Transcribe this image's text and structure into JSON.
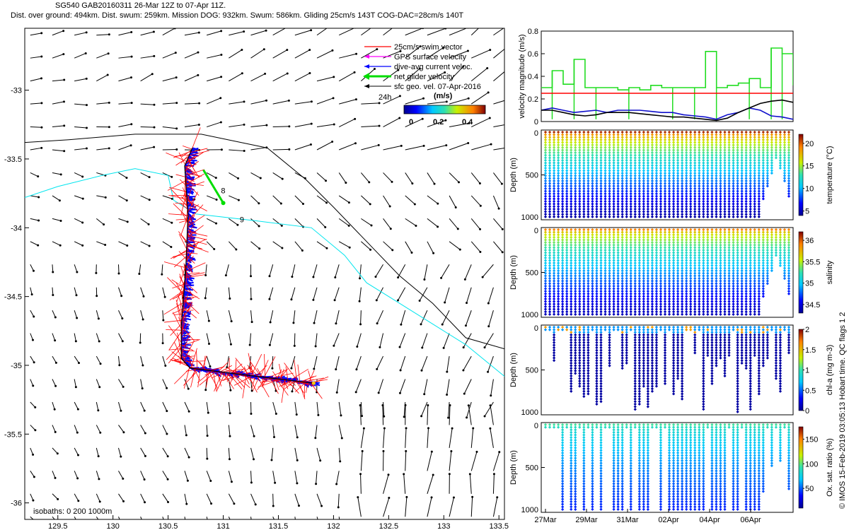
{
  "header": {
    "line1": "SG540 GAB20160311 26-Mar 12Z to 07-Apr 11Z.",
    "line2": "Dist. over ground: 494km. Dist. swum: 259km. Mission DOG: 932km. Swum: 586km. Gliding 25cm/s 143T COG-DAC=28cm/s 140T"
  },
  "footer": {
    "credit": "© IMOS 15-Feb-2019 03:05:13 Hobart time. QC flags 1  2"
  },
  "colors": {
    "swim": "#ff0000",
    "gps": "#ff00ff",
    "dac": "#0000ff",
    "net": "#00dd00",
    "geo": "#000000",
    "cyan_isobath": "#00e5ee",
    "black_isobath": "#000000",
    "threshold": "#ff0000"
  },
  "chart_data": [
    {
      "type": "scatter",
      "panel": "map",
      "x_ticks": [
        "129.5",
        "130",
        "130.5",
        "131",
        "131.5",
        "132",
        "132.5",
        "133",
        "133.5"
      ],
      "y_ticks": [
        "-33",
        "-33.5",
        "-34",
        "-34.5",
        "-35",
        "-35.5",
        "-36"
      ],
      "xlim": [
        129.2,
        133.55
      ],
      "ylim": [
        -36.12,
        -32.55
      ],
      "legend": [
        {
          "label": "25cm/s swim vector",
          "color": "#ff0000"
        },
        {
          "label": "GPS surface velocity",
          "color": "#ff00ff"
        },
        {
          "label": "dive-avg current veloc.",
          "color": "#0000ff"
        },
        {
          "label": "net glider velocity",
          "color": "#00dd00"
        },
        {
          "label": "sfc geo. vel. 07-Apr-2016",
          "color": "#000000"
        }
      ],
      "legend_placement": "top-right",
      "time_marker": "24h",
      "colorbar": {
        "label": "(m/s)",
        "ticks": [
          "0",
          "0.2",
          "0.4"
        ],
        "range": [
          0,
          0.5
        ]
      },
      "annotations": [
        {
          "text": "8",
          "lon": 130.98,
          "lat": -33.75
        },
        {
          "text": "9",
          "lon": 131.15,
          "lat": -33.96
        },
        {
          "text": "isobaths: 0   200   1000m"
        }
      ],
      "glider_track": [
        {
          "lon": 130.72,
          "lat": -33.42
        },
        {
          "lon": 130.65,
          "lat": -33.55
        },
        {
          "lon": 130.68,
          "lat": -33.9
        },
        {
          "lon": 130.66,
          "lat": -34.3
        },
        {
          "lon": 130.62,
          "lat": -34.7
        },
        {
          "lon": 130.62,
          "lat": -34.95
        },
        {
          "lon": 130.7,
          "lat": -35.02
        },
        {
          "lon": 131.2,
          "lat": -35.07
        },
        {
          "lon": 131.82,
          "lat": -35.13
        }
      ],
      "isobath_200m": [
        {
          "lon": 129.2,
          "lat": -33.78
        },
        {
          "lon": 129.5,
          "lat": -33.7
        },
        {
          "lon": 129.9,
          "lat": -33.62
        },
        {
          "lon": 130.2,
          "lat": -33.57
        },
        {
          "lon": 130.5,
          "lat": -33.62
        },
        {
          "lon": 130.55,
          "lat": -33.8
        },
        {
          "lon": 130.75,
          "lat": -33.9
        },
        {
          "lon": 131.3,
          "lat": -33.95
        },
        {
          "lon": 131.8,
          "lat": -34.0
        },
        {
          "lon": 132.1,
          "lat": -34.2
        },
        {
          "lon": 132.3,
          "lat": -34.4
        },
        {
          "lon": 132.5,
          "lat": -34.5
        },
        {
          "lon": 132.9,
          "lat": -34.7
        },
        {
          "lon": 133.2,
          "lat": -34.85
        },
        {
          "lon": 133.55,
          "lat": -35.08
        }
      ],
      "isobath_1000m": [
        {
          "lon": 129.2,
          "lat": -33.38
        },
        {
          "lon": 129.6,
          "lat": -33.36
        },
        {
          "lon": 130.2,
          "lat": -33.32
        },
        {
          "lon": 130.8,
          "lat": -33.32
        },
        {
          "lon": 131.4,
          "lat": -33.42
        },
        {
          "lon": 131.75,
          "lat": -33.65
        },
        {
          "lon": 132.0,
          "lat": -33.85
        },
        {
          "lon": 132.3,
          "lat": -34.1
        },
        {
          "lon": 132.6,
          "lat": -34.35
        },
        {
          "lon": 132.9,
          "lat": -34.55
        },
        {
          "lon": 133.2,
          "lat": -34.8
        },
        {
          "lon": 133.55,
          "lat": -34.88
        }
      ]
    },
    {
      "type": "line",
      "panel": "velocity",
      "ylabel": "velocity magnitude (m/s)",
      "y_ticks": [
        "0",
        "0.2",
        "0.4",
        "0.6",
        "0.8"
      ],
      "ylim": [
        0,
        0.8
      ],
      "x": [
        0,
        0.5,
        1,
        1.5,
        2,
        2.5,
        3,
        3.5,
        4,
        4.5,
        5,
        5.5,
        6,
        6.5,
        7,
        7.5,
        8,
        8.5,
        9,
        9.5,
        10,
        10.5,
        11,
        11.5
      ],
      "series": [
        {
          "color": "#22dd22",
          "values": [
            0.3,
            0.45,
            0.33,
            0.55,
            0.3,
            0.3,
            0.3,
            0.28,
            0.3,
            0.28,
            0.32,
            0.3,
            0.3,
            0.3,
            0.3,
            0.62,
            0.3,
            0.32,
            0.34,
            0.38,
            0.3,
            0.65,
            0.6,
            0.32
          ]
        },
        {
          "color": "#1010cc",
          "values": [
            0.1,
            0.12,
            0.1,
            0.08,
            0.09,
            0.1,
            0.08,
            0.1,
            0.1,
            0.1,
            0.09,
            0.08,
            0.08,
            0.06,
            0.05,
            0.04,
            0.02,
            0.06,
            0.08,
            0.12,
            0.1,
            0.05,
            0.04,
            0.02
          ]
        },
        {
          "color": "#000000",
          "values": [
            0.1,
            0.1,
            0.08,
            0.06,
            0.05,
            0.06,
            0.08,
            0.08,
            0.08,
            0.07,
            0.06,
            0.05,
            0.04,
            0.04,
            0.03,
            0.02,
            0.01,
            0.03,
            0.08,
            0.12,
            0.16,
            0.18,
            0.19,
            0.17
          ]
        }
      ],
      "threshold": 0.25
    },
    {
      "type": "heatmap",
      "panel": "temperature",
      "ylabel": "Depth (m)",
      "y_ticks": [
        "0",
        "500",
        "1000"
      ],
      "colorbar_label": "temperature (°C)",
      "colorbar_ticks": [
        "5",
        "10",
        "15",
        "20"
      ],
      "surface_value": 21,
      "deep_value": 4.5,
      "range": [
        4,
        22
      ]
    },
    {
      "type": "heatmap",
      "panel": "salinity",
      "ylabel": "Depth (m)",
      "y_ticks": [
        "0",
        "500",
        "1000"
      ],
      "colorbar_label": "salinity",
      "colorbar_ticks": [
        "34.5",
        "35",
        "35.5",
        "36"
      ],
      "surface_value": 35.9,
      "deep_value": 34.4,
      "range": [
        34.3,
        36.2
      ]
    },
    {
      "type": "heatmap",
      "panel": "chl-a",
      "ylabel": "Depth (m)",
      "y_ticks": [
        "0",
        "500",
        "1000"
      ],
      "colorbar_label": "chl-a (mg m-3)",
      "colorbar_ticks": [
        "0",
        "0.5",
        "1",
        "1.5",
        "2"
      ],
      "surface_value": 0.6,
      "deep_value": 0.0,
      "range": [
        0,
        2
      ]
    },
    {
      "type": "heatmap",
      "panel": "oxygen",
      "ylabel": "Depth (m)",
      "y_ticks": [
        "0",
        "500",
        "1000"
      ],
      "x_tick_labels": [
        "27Mar",
        "29Mar",
        "31Mar",
        "02Apr",
        "04Apr",
        "06Apr"
      ],
      "colorbar_label": "Ox. sat. ratio (%)",
      "colorbar_ticks": [
        "50",
        "100",
        "150"
      ],
      "surface_value": 95,
      "deep_value": 40,
      "range": [
        10,
        175
      ]
    }
  ]
}
